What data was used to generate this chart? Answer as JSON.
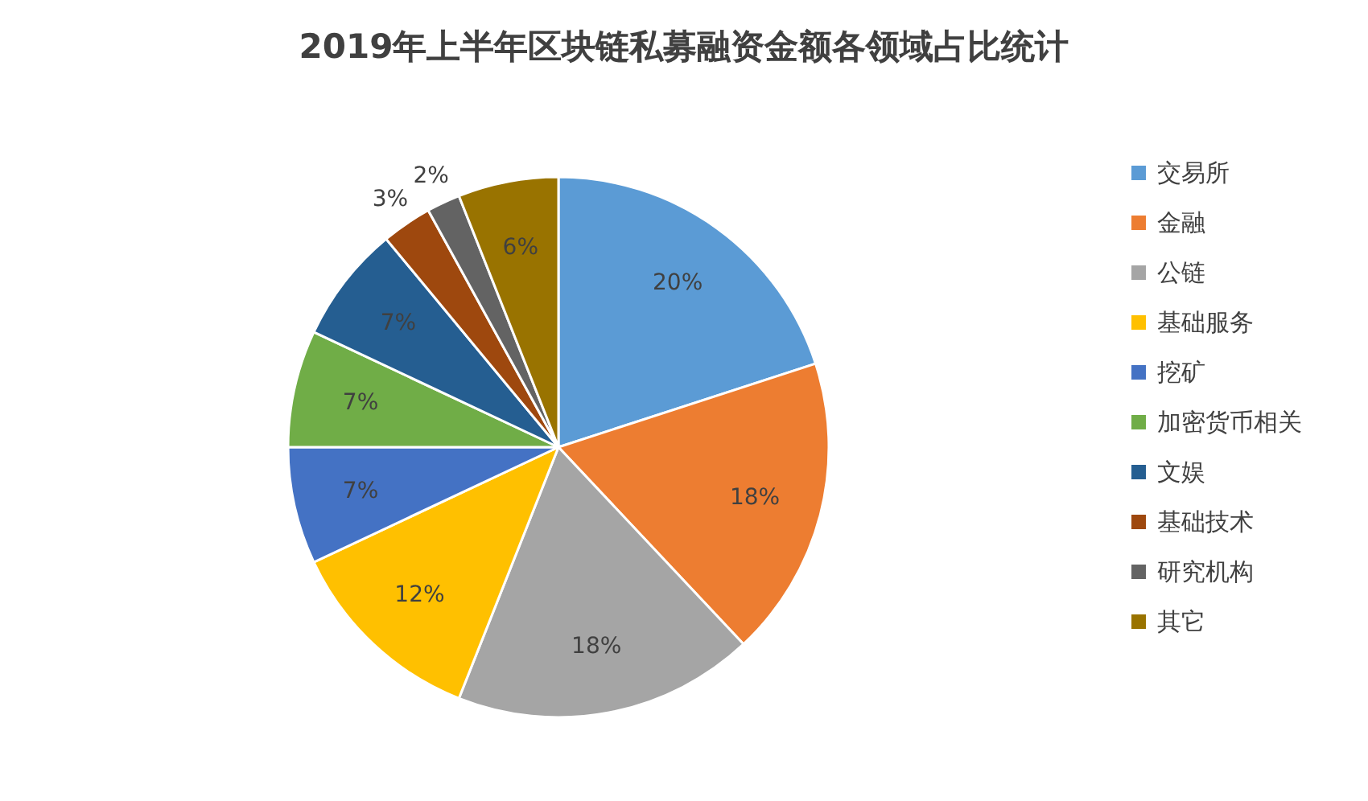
{
  "chart_data": {
    "type": "pie",
    "title": "2019年上半年区块链私募融资金额各领域占比统计",
    "categories": [
      "交易所",
      "金融",
      "公链",
      "基础服务",
      "挖矿",
      "加密货币相关",
      "文娱",
      "基础技术",
      "研究机构",
      "其它"
    ],
    "values": [
      20,
      18,
      18,
      12,
      7,
      7,
      7,
      3,
      2,
      6
    ],
    "value_labels": [
      "20%",
      "18%",
      "18%",
      "12%",
      "7%",
      "7%",
      "7%",
      "3%",
      "2%",
      "6%"
    ],
    "colors": [
      "#5b9bd5",
      "#ed7d31",
      "#a5a5a5",
      "#ffc000",
      "#4472c4",
      "#70ad47",
      "#255e91",
      "#9e480e",
      "#636363",
      "#997300"
    ],
    "legend": "right"
  }
}
